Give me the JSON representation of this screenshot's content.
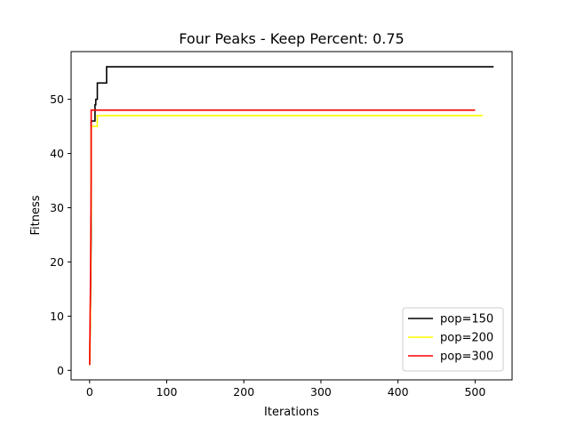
{
  "chart_data": {
    "type": "line",
    "title": "Four Peaks - Keep Percent: 0.75",
    "xlabel": "Iterations",
    "ylabel": "Fitness",
    "xlim": [
      -24,
      548
    ],
    "ylim": [
      -1.75,
      58.8
    ],
    "xticks": [
      0,
      100,
      200,
      300,
      400,
      500
    ],
    "yticks": [
      0,
      10,
      20,
      30,
      40,
      50
    ],
    "grid": false,
    "legend_position": "lower-right",
    "series": [
      {
        "name": "pop=150",
        "color": "#000000",
        "x": [
          0,
          1,
          2,
          2,
          5,
          5,
          7,
          7,
          8,
          8,
          10,
          10,
          12,
          12,
          22,
          22,
          524
        ],
        "y": [
          1,
          10,
          25,
          46,
          46,
          46,
          46,
          49,
          49,
          50,
          50,
          53,
          53,
          53,
          53,
          56,
          56
        ]
      },
      {
        "name": "pop=200",
        "color": "#ffff00",
        "x": [
          0,
          1,
          2,
          2,
          10,
          10,
          510
        ],
        "y": [
          1,
          10,
          30,
          45,
          45,
          47,
          47
        ]
      },
      {
        "name": "pop=300",
        "color": "#ff0000",
        "x": [
          0,
          1,
          2,
          2,
          500
        ],
        "y": [
          1,
          15,
          35,
          48,
          48
        ]
      }
    ]
  }
}
